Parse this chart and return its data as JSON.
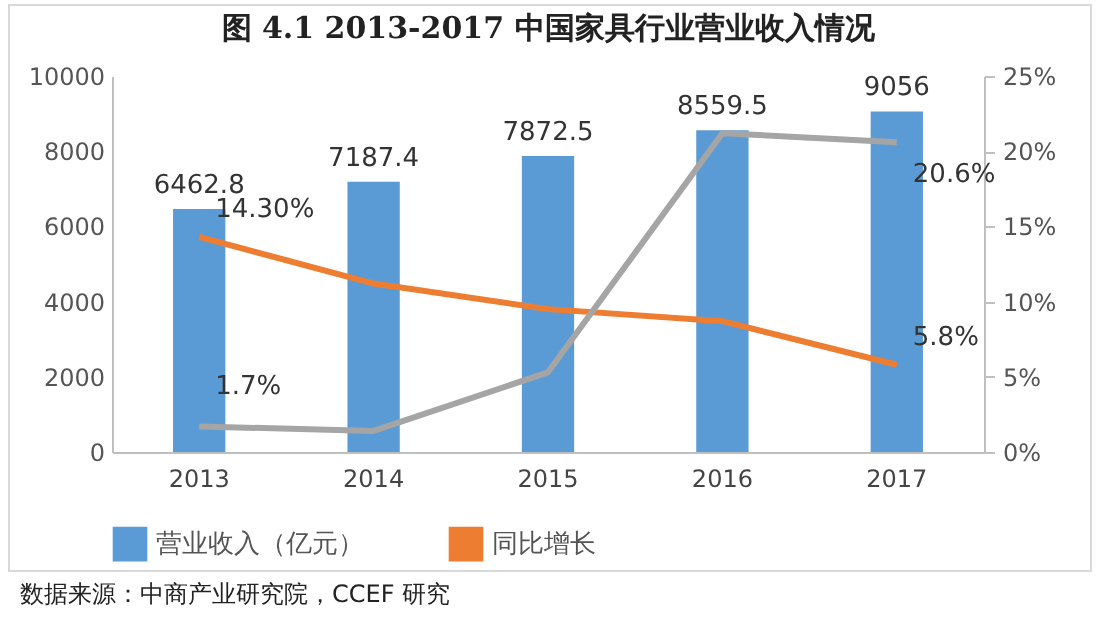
{
  "chart_data": {
    "type": "bar",
    "title": "图 4.1 2013-2017 中国家具行业营业收入情况",
    "categories": [
      "2013",
      "2014",
      "2015",
      "2016",
      "2017"
    ],
    "series": [
      {
        "name": "营业收入（亿元）",
        "color": "#5b9bd5",
        "values": [
          6462.8,
          7187.4,
          7872.5,
          8559.5,
          9056
        ],
        "value_labels": [
          "6462.8",
          "7187.4",
          "7872.5",
          "8559.5",
          "9056"
        ]
      },
      {
        "name": "同比增长",
        "type": "line",
        "axis": "y2",
        "color": "#ed7d31",
        "values": [
          14.3,
          11.2,
          9.5,
          8.7,
          5.8
        ],
        "value_labels": [
          "14.30%",
          null,
          null,
          null,
          "5.8%"
        ]
      },
      {
        "type": "line",
        "axis": "y2",
        "color": "#a5a5a5",
        "values": [
          1.7,
          1.4,
          5.3,
          21.2,
          20.6
        ],
        "value_labels": [
          "1.7%",
          null,
          null,
          null,
          "20.6%"
        ]
      }
    ],
    "ylim": [
      0,
      10000
    ],
    "yticks": [
      0,
      2000,
      4000,
      6000,
      8000,
      10000
    ],
    "y2lim": [
      0,
      25
    ],
    "y2ticks": [
      {
        "value": 0,
        "label": "0%"
      },
      {
        "value": 5,
        "label": "5%"
      },
      {
        "value": 10,
        "label": "10%"
      },
      {
        "value": 15,
        "label": "15%"
      },
      {
        "value": 20,
        "label": "20%"
      },
      {
        "value": 25,
        "label": "25%"
      }
    ],
    "grid": false,
    "legend": "bottom",
    "marker": "none",
    "line_style": "solid",
    "annotations": [
      "数据来源：中商产业研究院，CCEF 研究"
    ]
  }
}
